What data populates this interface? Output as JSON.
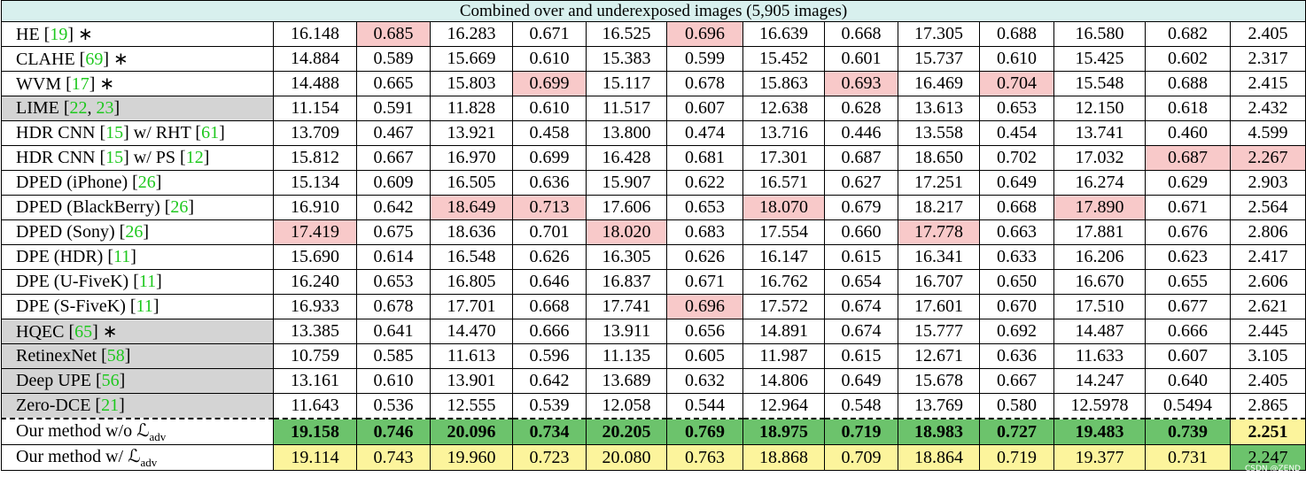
{
  "table": {
    "title": "Combined over and underexposed images (5,905 images)",
    "colors": {
      "red": "#f8c9c9",
      "green": "#6cc36c",
      "yellow": "#fcf49c",
      "shade": "#d4d4d4",
      "cite": "#1ec81e",
      "header": "#d8f0ee"
    },
    "rows": [
      {
        "label": [
          {
            "t": "HE ["
          },
          {
            "t": "19",
            "cite": true
          },
          {
            "t": "] ∗"
          }
        ],
        "cells": [
          "16.148",
          "0.685",
          "16.283",
          "0.671",
          "16.525",
          "0.696",
          "16.639",
          "0.668",
          "17.305",
          "0.688",
          "16.580",
          "0.682",
          "2.405"
        ],
        "marks": [
          null,
          "red",
          null,
          null,
          null,
          "red",
          null,
          null,
          null,
          null,
          null,
          null,
          null
        ]
      },
      {
        "label": [
          {
            "t": "CLAHE ["
          },
          {
            "t": "69",
            "cite": true
          },
          {
            "t": "] ∗"
          }
        ],
        "cells": [
          "14.884",
          "0.589",
          "15.669",
          "0.610",
          "15.383",
          "0.599",
          "15.452",
          "0.601",
          "15.737",
          "0.610",
          "15.425",
          "0.602",
          "2.317"
        ]
      },
      {
        "label": [
          {
            "t": "WVM ["
          },
          {
            "t": "17",
            "cite": true
          },
          {
            "t": "] ∗"
          }
        ],
        "cells": [
          "14.488",
          "0.665",
          "15.803",
          "0.699",
          "15.117",
          "0.678",
          "15.863",
          "0.693",
          "16.469",
          "0.704",
          "15.548",
          "0.688",
          "2.415"
        ],
        "marks": [
          null,
          null,
          null,
          "red",
          null,
          null,
          null,
          "red",
          null,
          "red",
          null,
          null,
          null
        ]
      },
      {
        "label": [
          {
            "t": "LIME ["
          },
          {
            "t": "22",
            "cite": true
          },
          {
            "t": ", "
          },
          {
            "t": "23",
            "cite": true
          },
          {
            "t": "]"
          }
        ],
        "shade": true,
        "cells": [
          "11.154",
          "0.591",
          "11.828",
          "0.610",
          "11.517",
          "0.607",
          "12.638",
          "0.628",
          "13.613",
          "0.653",
          "12.150",
          "0.618",
          "2.432"
        ]
      },
      {
        "label": [
          {
            "t": "HDR CNN ["
          },
          {
            "t": "15",
            "cite": true
          },
          {
            "t": "] w/ RHT ["
          },
          {
            "t": "61",
            "cite": true
          },
          {
            "t": "]"
          }
        ],
        "cells": [
          "13.709",
          "0.467",
          "13.921",
          "0.458",
          "13.800",
          "0.474",
          "13.716",
          "0.446",
          "13.558",
          "0.454",
          "13.741",
          "0.460",
          "4.599"
        ]
      },
      {
        "label": [
          {
            "t": "HDR CNN ["
          },
          {
            "t": "15",
            "cite": true
          },
          {
            "t": "] w/ PS ["
          },
          {
            "t": "12",
            "cite": true
          },
          {
            "t": "]"
          }
        ],
        "cells": [
          "15.812",
          "0.667",
          "16.970",
          "0.699",
          "16.428",
          "0.681",
          "17.301",
          "0.687",
          "18.650",
          "0.702",
          "17.032",
          "0.687",
          "2.267"
        ],
        "marks": [
          null,
          null,
          null,
          null,
          null,
          null,
          null,
          null,
          null,
          null,
          null,
          "red",
          "red"
        ]
      },
      {
        "label": [
          {
            "t": "DPED (iPhone) ["
          },
          {
            "t": "26",
            "cite": true
          },
          {
            "t": "]"
          }
        ],
        "cells": [
          "15.134",
          "0.609",
          "16.505",
          "0.636",
          "15.907",
          "0.622",
          "16.571",
          "0.627",
          "17.251",
          "0.649",
          "16.274",
          "0.629",
          "2.903"
        ]
      },
      {
        "label": [
          {
            "t": "DPED (BlackBerry) ["
          },
          {
            "t": "26",
            "cite": true
          },
          {
            "t": "]"
          }
        ],
        "cells": [
          "16.910",
          "0.642",
          "18.649",
          "0.713",
          "17.606",
          "0.653",
          "18.070",
          "0.679",
          "18.217",
          "0.668",
          "17.890",
          "0.671",
          "2.564"
        ],
        "marks": [
          null,
          null,
          "red",
          "red",
          null,
          null,
          "red",
          null,
          null,
          null,
          "red",
          null,
          null
        ]
      },
      {
        "label": [
          {
            "t": "DPED (Sony) ["
          },
          {
            "t": "26",
            "cite": true
          },
          {
            "t": "]"
          }
        ],
        "cells": [
          "17.419",
          "0.675",
          "18.636",
          "0.701",
          "18.020",
          "0.683",
          "17.554",
          "0.660",
          "17.778",
          "0.663",
          "17.881",
          "0.676",
          "2.806"
        ],
        "marks": [
          "red",
          null,
          null,
          null,
          "red",
          null,
          null,
          null,
          "red",
          null,
          null,
          null,
          null
        ]
      },
      {
        "label": [
          {
            "t": "DPE (HDR) ["
          },
          {
            "t": "11",
            "cite": true
          },
          {
            "t": "]"
          }
        ],
        "cells": [
          "15.690",
          "0.614",
          "16.548",
          "0.626",
          "16.305",
          "0.626",
          "16.147",
          "0.615",
          "16.341",
          "0.633",
          "16.206",
          "0.623",
          "2.417"
        ]
      },
      {
        "label": [
          {
            "t": "DPE (U-FiveK) ["
          },
          {
            "t": "11",
            "cite": true
          },
          {
            "t": "]"
          }
        ],
        "cells": [
          "16.240",
          "0.653",
          "16.805",
          "0.646",
          "16.837",
          "0.671",
          "16.762",
          "0.654",
          "16.707",
          "0.650",
          "16.670",
          "0.655",
          "2.606"
        ]
      },
      {
        "label": [
          {
            "t": "DPE (S-FiveK) ["
          },
          {
            "t": "11",
            "cite": true
          },
          {
            "t": "]"
          }
        ],
        "cells": [
          "16.933",
          "0.678",
          "17.701",
          "0.668",
          "17.741",
          "0.696",
          "17.572",
          "0.674",
          "17.601",
          "0.670",
          "17.510",
          "0.677",
          "2.621"
        ],
        "marks": [
          null,
          null,
          null,
          null,
          null,
          "red",
          null,
          null,
          null,
          null,
          null,
          null,
          null
        ]
      },
      {
        "label": [
          {
            "t": "HQEC ["
          },
          {
            "t": "65",
            "cite": true
          },
          {
            "t": "] ∗"
          }
        ],
        "shade": true,
        "cells": [
          "13.385",
          "0.641",
          "14.470",
          "0.666",
          "13.911",
          "0.656",
          "14.891",
          "0.674",
          "15.777",
          "0.692",
          "14.487",
          "0.666",
          "2.445"
        ]
      },
      {
        "label": [
          {
            "t": "RetinexNet ["
          },
          {
            "t": "58",
            "cite": true
          },
          {
            "t": "]"
          }
        ],
        "shade": true,
        "cells": [
          "10.759",
          "0.585",
          "11.613",
          "0.596",
          "11.135",
          "0.605",
          "11.987",
          "0.615",
          "12.671",
          "0.636",
          "11.633",
          "0.607",
          "3.105"
        ]
      },
      {
        "label": [
          {
            "t": "Deep UPE ["
          },
          {
            "t": "56",
            "cite": true
          },
          {
            "t": "]"
          }
        ],
        "shade": true,
        "cells": [
          "13.161",
          "0.610",
          "13.901",
          "0.642",
          "13.689",
          "0.632",
          "14.806",
          "0.649",
          "15.678",
          "0.667",
          "14.247",
          "0.640",
          "2.405"
        ]
      },
      {
        "label": [
          {
            "t": "Zero-DCE ["
          },
          {
            "t": "21",
            "cite": true
          },
          {
            "t": "]"
          }
        ],
        "shade": true,
        "cells": [
          "11.643",
          "0.536",
          "12.555",
          "0.539",
          "12.058",
          "0.544",
          "12.964",
          "0.548",
          "13.769",
          "0.580",
          "12.5978",
          "0.5494",
          "2.865"
        ]
      },
      {
        "label": [
          {
            "t": "Our method w/o ℒ"
          },
          {
            "t": "adv",
            "sub": true
          }
        ],
        "dashed": true,
        "bold": true,
        "cells": [
          "19.158",
          "0.746",
          "20.096",
          "0.734",
          "20.205",
          "0.769",
          "18.975",
          "0.719",
          "18.983",
          "0.727",
          "19.483",
          "0.739",
          "2.251"
        ],
        "marks": [
          "green",
          "green",
          "green",
          "green",
          "green",
          "green",
          "green",
          "green",
          "green",
          "green",
          "green",
          "green",
          "yellow"
        ]
      },
      {
        "label": [
          {
            "t": "Our method w/ ℒ"
          },
          {
            "t": "adv",
            "sub": true
          }
        ],
        "cells": [
          "19.114",
          "0.743",
          "19.960",
          "0.723",
          "20.080",
          "0.763",
          "18.868",
          "0.709",
          "18.864",
          "0.719",
          "19.377",
          "0.731",
          "2.247"
        ],
        "marks": [
          "yellow",
          "yellow",
          "yellow",
          "yellow",
          "yellow",
          "yellow",
          "yellow",
          "yellow",
          "yellow",
          "yellow",
          "yellow",
          "yellow",
          "green"
        ]
      }
    ],
    "watermark": "CSDN @ZEND"
  }
}
